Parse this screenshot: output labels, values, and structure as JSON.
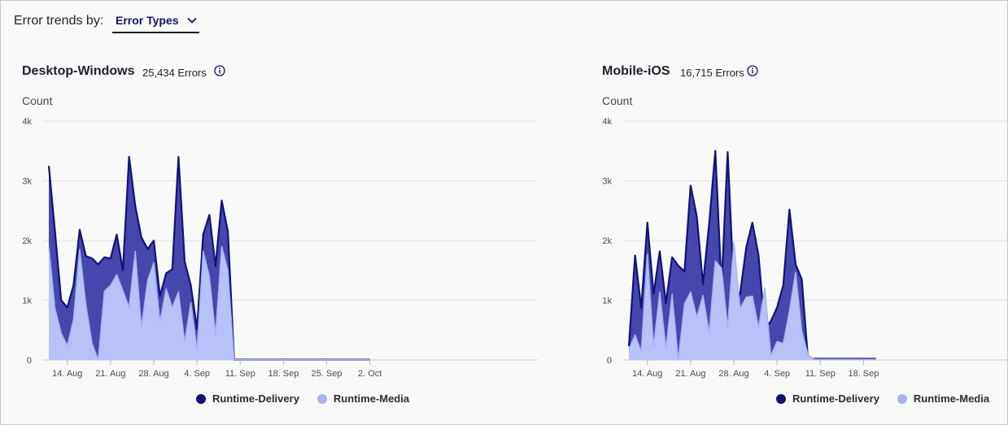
{
  "header": {
    "label": "Error trends by:",
    "dropdown_value": "Error Types"
  },
  "colors": {
    "delivery": "#11117a",
    "delivery_fill": "#4646ad",
    "media": "#a6b3f2",
    "media_fill": "#b7c3f8"
  },
  "panels": [
    {
      "title": "Desktop-Windows",
      "count": "25,434 Errors",
      "ylabel": "Count",
      "yticks": [
        "4k",
        "3k",
        "2k",
        "1k",
        "0"
      ],
      "xticks": [
        "14. Aug",
        "21. Aug",
        "28. Aug",
        "4. Sep",
        "11. Sep",
        "18. Sep",
        "25. Sep",
        "2. Oct"
      ],
      "legend": [
        "Runtime-Delivery",
        "Runtime-Media"
      ]
    },
    {
      "title": "Mobile-iOS",
      "count": "16,715 Errors",
      "ylabel": "Count",
      "yticks": [
        "4k",
        "3k",
        "2k",
        "1k",
        "0"
      ],
      "xticks": [
        "14. Aug",
        "21. Aug",
        "28. Aug",
        "4. Sep",
        "11. Sep",
        "18. Sep"
      ],
      "legend": [
        "Runtime-Delivery",
        "Runtime-Media"
      ]
    }
  ],
  "chart_data": [
    {
      "type": "area",
      "title": "Desktop-Windows",
      "ylabel": "Count",
      "ylim": [
        0,
        4000
      ],
      "x_start": "11. Aug",
      "x": [
        "11. Aug",
        "12. Aug",
        "13. Aug",
        "14. Aug",
        "15. Aug",
        "16. Aug",
        "17. Aug",
        "18. Aug",
        "19. Aug",
        "20. Aug",
        "21. Aug",
        "22. Aug",
        "23. Aug",
        "24. Aug",
        "25. Aug",
        "26. Aug",
        "27. Aug",
        "28. Aug",
        "29. Aug",
        "30. Aug",
        "31. Aug",
        "1. Sep",
        "2. Sep",
        "3. Sep",
        "4. Sep",
        "5. Sep",
        "6. Sep",
        "7. Sep",
        "8. Sep",
        "9. Sep",
        "10. Sep",
        "11. Sep",
        "12. Sep",
        "13. Sep",
        "14. Sep",
        "15. Sep",
        "16. Sep",
        "17. Sep",
        "18. Sep",
        "19. Sep",
        "20. Sep",
        "21. Sep",
        "22. Sep",
        "23. Sep",
        "24. Sep",
        "25. Sep",
        "26. Sep",
        "27. Sep",
        "28. Sep",
        "29. Sep",
        "30. Sep",
        "1. Oct",
        "2. Oct"
      ],
      "series": [
        {
          "name": "Runtime-Delivery",
          "values": [
            3250,
            2150,
            1000,
            880,
            1250,
            2180,
            1740,
            1700,
            1600,
            1720,
            1700,
            2100,
            1500,
            3400,
            2580,
            2050,
            1860,
            2000,
            1070,
            1450,
            1520,
            3400,
            1650,
            1250,
            520,
            2100,
            2430,
            1570,
            2670,
            2150,
            10,
            10,
            10,
            10,
            10,
            10,
            10,
            10,
            10,
            10,
            10,
            10,
            10,
            10,
            10,
            10,
            10,
            10,
            10,
            10,
            10,
            10,
            10
          ]
        },
        {
          "name": "Runtime-Media",
          "values": [
            1900,
            860,
            450,
            240,
            680,
            1850,
            930,
            280,
            0,
            1150,
            1250,
            1430,
            1160,
            880,
            1820,
            540,
            1330,
            1630,
            640,
            1190,
            880,
            1140,
            300,
            960,
            170,
            1820,
            1400,
            420,
            1900,
            1500,
            10,
            10,
            10,
            10,
            10,
            10,
            10,
            10,
            10,
            10,
            10,
            10,
            10,
            10,
            10,
            10,
            10,
            10,
            10,
            10,
            10,
            10,
            10
          ]
        }
      ],
      "grid": true,
      "legend_position": "bottom-center"
    },
    {
      "type": "area",
      "title": "Mobile-iOS",
      "ylabel": "Count",
      "ylim": [
        0,
        4000
      ],
      "x_start": "11. Aug",
      "x": [
        "11. Aug",
        "12. Aug",
        "13. Aug",
        "14. Aug",
        "15. Aug",
        "16. Aug",
        "17. Aug",
        "18. Aug",
        "19. Aug",
        "20. Aug",
        "21. Aug",
        "22. Aug",
        "23. Aug",
        "24. Aug",
        "25. Aug",
        "26. Aug",
        "27. Aug",
        "28. Aug",
        "29. Aug",
        "30. Aug",
        "31. Aug",
        "1. Sep",
        "2. Sep",
        "3. Sep",
        "4. Sep",
        "5. Sep",
        "6. Sep",
        "7. Sep",
        "8. Sep",
        "9. Sep",
        "10. Sep",
        "11. Sep",
        "12. Sep",
        "13. Sep",
        "14. Sep",
        "15. Sep",
        "16. Sep",
        "17. Sep",
        "18. Sep",
        "19. Sep",
        "20. Sep"
      ],
      "series": [
        {
          "name": "Runtime-Delivery",
          "values": [
            230,
            1750,
            870,
            2300,
            1100,
            1820,
            950,
            1720,
            1580,
            1480,
            2920,
            2400,
            1270,
            2280,
            3500,
            1230,
            3480,
            1180,
            1100,
            1880,
            2300,
            1750,
            520,
            650,
            880,
            1250,
            2520,
            1600,
            1350,
            20,
            20,
            20,
            20,
            20,
            20,
            20,
            20,
            20,
            20,
            20,
            20
          ]
        },
        {
          "name": "Runtime-Media",
          "values": [
            180,
            420,
            140,
            1770,
            220,
            1140,
            190,
            1100,
            0,
            940,
            1140,
            720,
            1080,
            460,
            1660,
            1540,
            540,
            1980,
            860,
            1050,
            1070,
            540,
            1210,
            70,
            310,
            280,
            820,
            1470,
            480,
            90,
            10,
            10,
            10,
            10,
            10,
            10,
            10,
            10,
            10,
            10,
            10
          ]
        }
      ],
      "grid": true,
      "legend_position": "bottom-center"
    }
  ]
}
